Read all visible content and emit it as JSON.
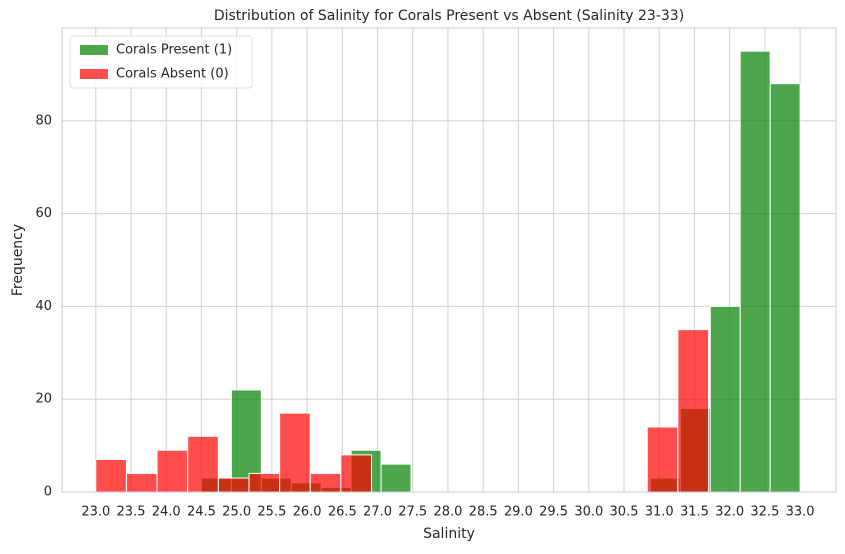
{
  "chart_data": {
    "type": "histogram",
    "title": "Distribution of Salinity for Corals Present vs Absent (Salinity 23-33)",
    "x_label": "Salinity",
    "y_label": "Frequency",
    "series": [
      {
        "name": "Corals Present (1)",
        "color": "#008000",
        "opacity": 0.7,
        "bins": [
          24.5,
          24.925,
          25.35,
          25.775,
          26.2,
          26.625,
          27.05,
          27.475,
          27.9,
          28.325,
          28.75,
          29.175,
          29.6,
          30.025,
          30.45,
          30.875,
          31.3,
          31.725,
          32.15,
          32.575,
          33.0
        ],
        "values": [
          3,
          22,
          3,
          2,
          1,
          9,
          6,
          0,
          0,
          0,
          0,
          0,
          0,
          0,
          0,
          3,
          18,
          40,
          95,
          88
        ]
      },
      {
        "name": "Corals Absent (0)",
        "color": "#ff0000",
        "opacity": 0.7,
        "bins": [
          23.0,
          23.435,
          23.87,
          24.305,
          24.74,
          25.175,
          25.61,
          26.045,
          26.48,
          26.915,
          27.35,
          27.785,
          28.22,
          28.655,
          29.09,
          29.525,
          29.96,
          30.395,
          30.83,
          31.265,
          31.7
        ],
        "values": [
          7,
          4,
          9,
          12,
          3,
          4,
          17,
          4,
          8,
          0,
          0,
          0,
          0,
          0,
          0,
          0,
          0,
          0,
          14,
          35
        ]
      }
    ],
    "xlim": [
      22.52,
      33.51
    ],
    "ylim": [
      0,
      100
    ],
    "xticks": [
      {
        "value": 23,
        "label": "23.0"
      },
      {
        "value": 23.5,
        "label": "23.5"
      },
      {
        "value": 24,
        "label": "24.0"
      },
      {
        "value": 24.5,
        "label": "24.5"
      },
      {
        "value": 25,
        "label": "25.0"
      },
      {
        "value": 25.5,
        "label": "25.5"
      },
      {
        "value": 26,
        "label": "26.0"
      },
      {
        "value": 26.5,
        "label": "26.5"
      },
      {
        "value": 27,
        "label": "27.0"
      },
      {
        "value": 27.5,
        "label": "27.5"
      },
      {
        "value": 28,
        "label": "28.0"
      },
      {
        "value": 28.5,
        "label": "28.5"
      },
      {
        "value": 29,
        "label": "29.0"
      },
      {
        "value": 29.5,
        "label": "29.5"
      },
      {
        "value": 30,
        "label": "30.0"
      },
      {
        "value": 30.5,
        "label": "30.5"
      },
      {
        "value": 31,
        "label": "31.0"
      },
      {
        "value": 31.5,
        "label": "31.5"
      },
      {
        "value": 32,
        "label": "32.0"
      },
      {
        "value": 32.5,
        "label": "32.5"
      },
      {
        "value": 33,
        "label": "33.0"
      }
    ],
    "yticks": [
      0,
      20,
      40,
      60,
      80
    ],
    "grid": true,
    "legend": "upper left"
  }
}
